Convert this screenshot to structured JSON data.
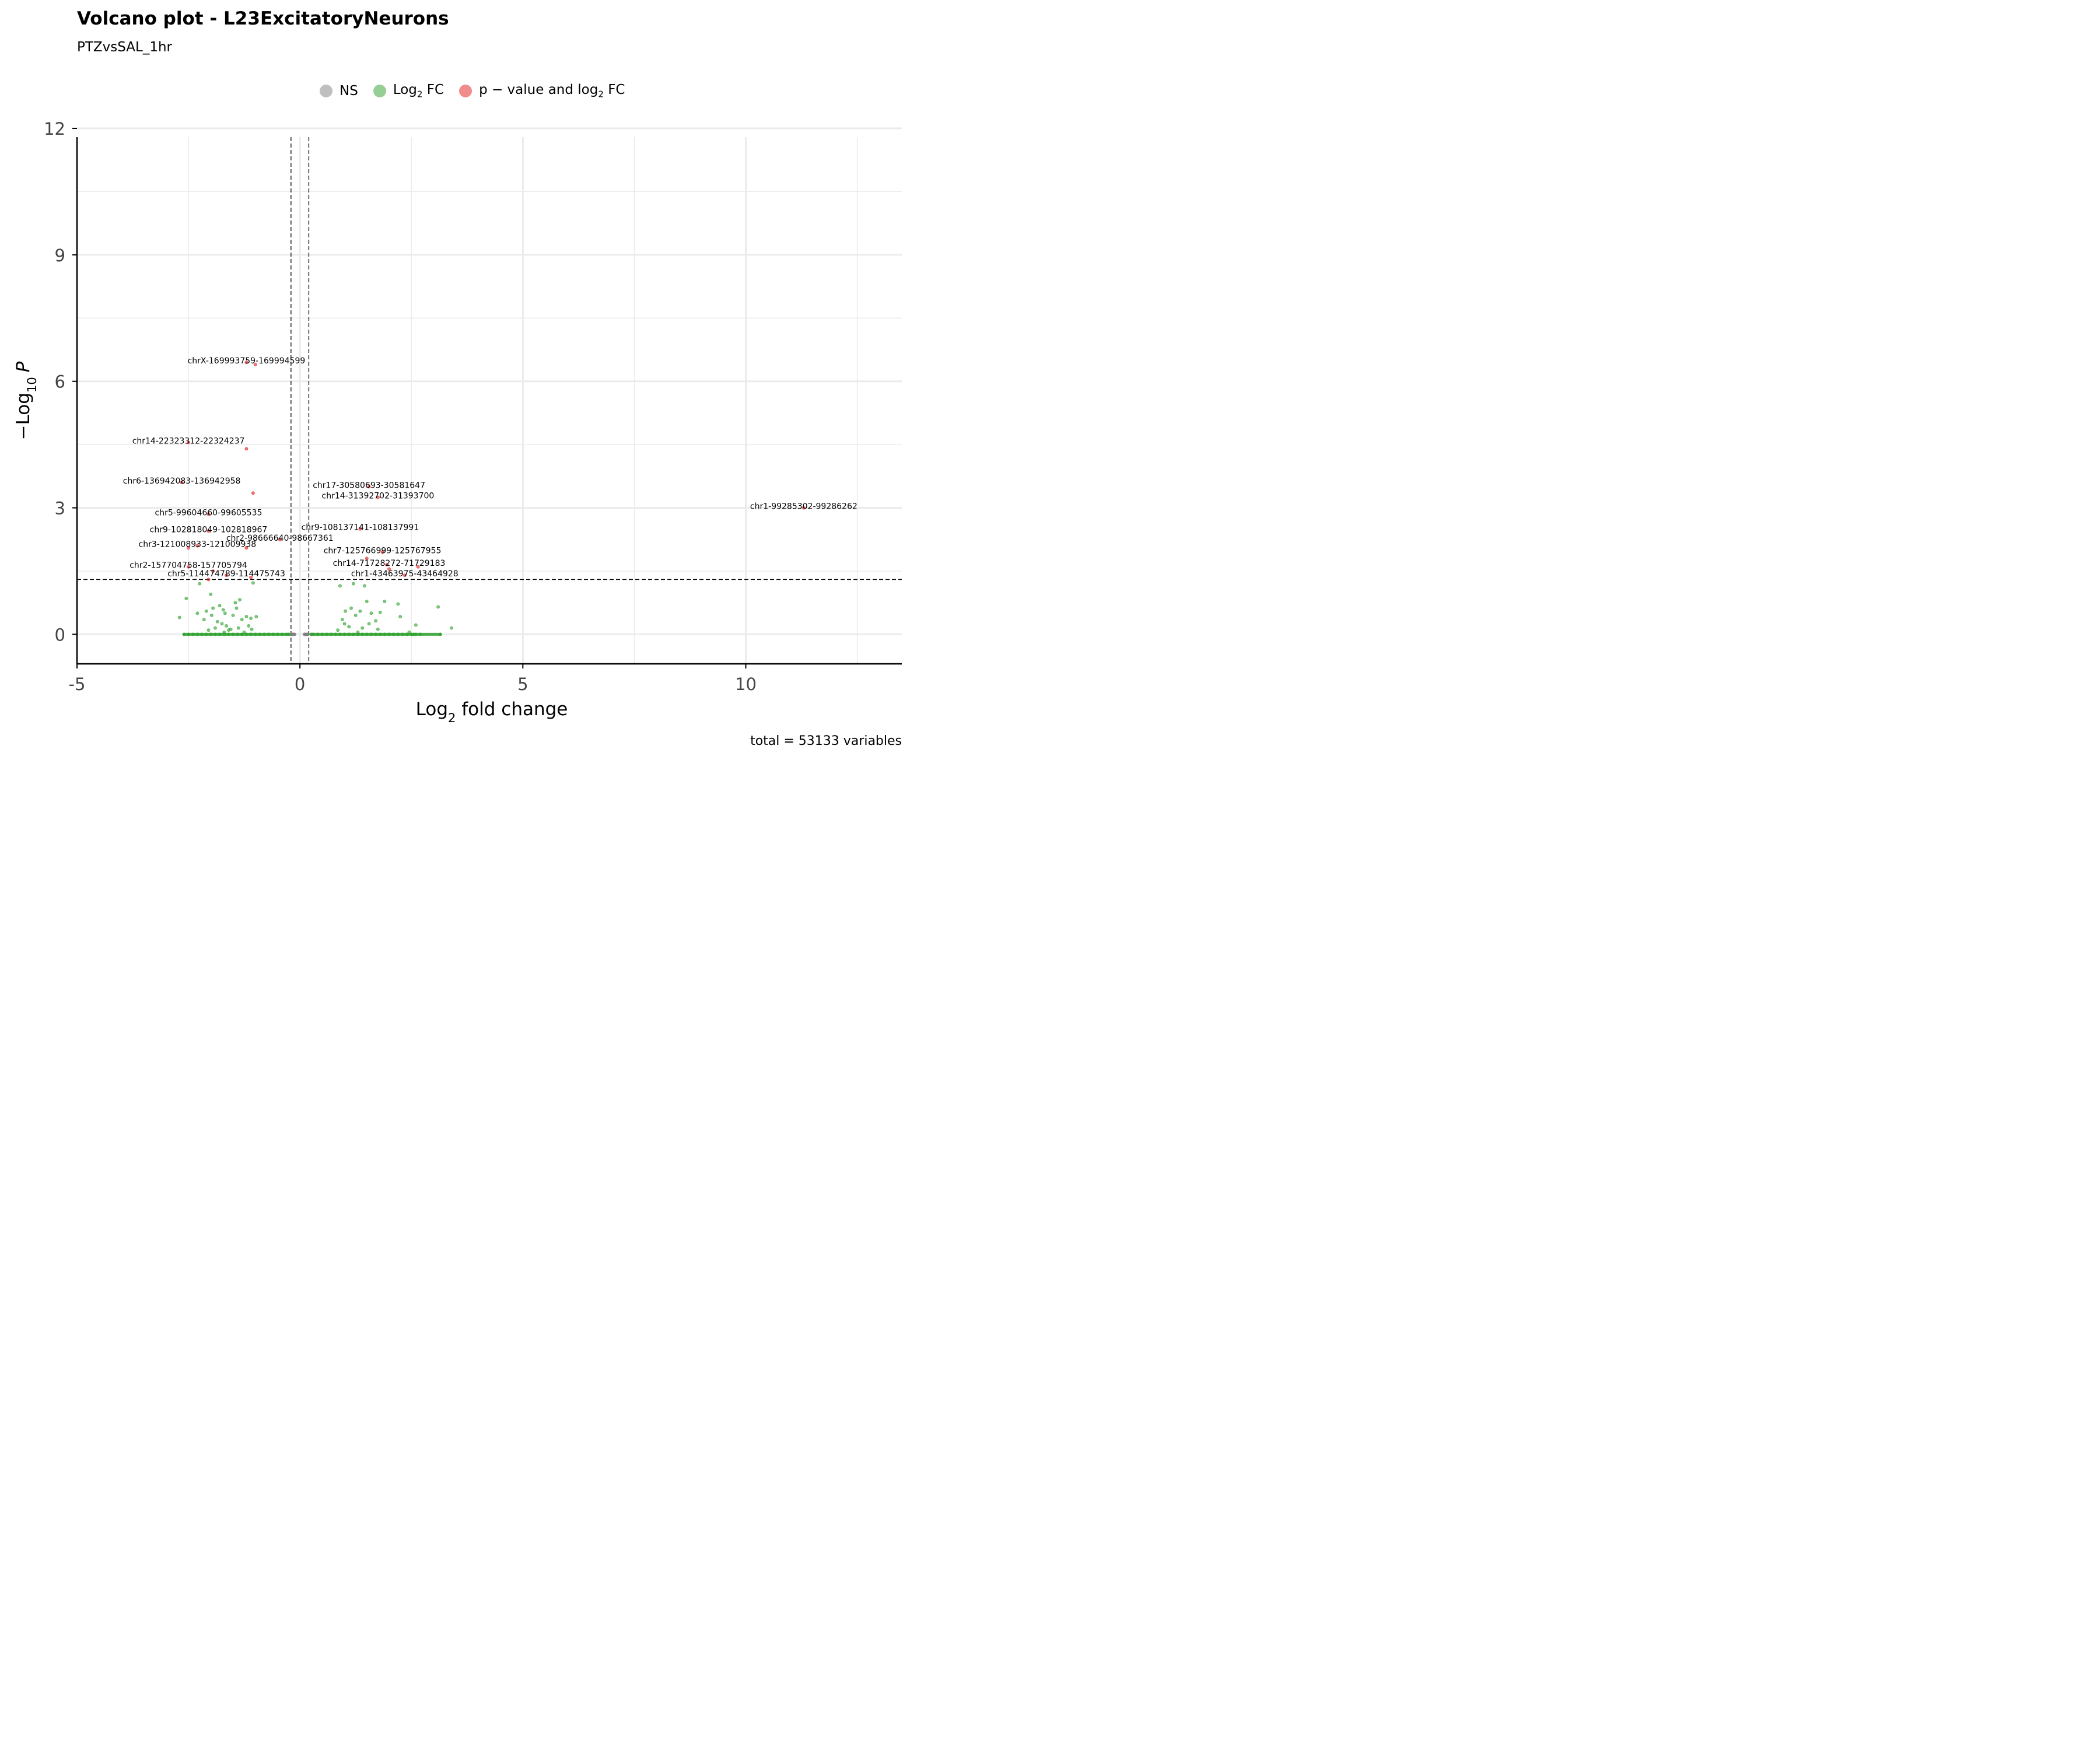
{
  "chart_data": {
    "type": "scatter",
    "title": "Volcano plot - L23ExcitatoryNeurons",
    "subtitle": "PTZvsSAL_1hr",
    "xlabel": "Log2 fold change",
    "ylabel": "-Log10 P",
    "xlim": [
      -5,
      13.5
    ],
    "ylim": [
      -0.7,
      12
    ],
    "x_ticks": [
      -5,
      0,
      5,
      10
    ],
    "y_ticks": [
      0,
      3,
      6,
      9,
      12
    ],
    "grid": true,
    "legend_position": "top",
    "caption": "total = 53133 variables",
    "cutoffs": {
      "log2fc": [
        -0.2,
        0.2
      ],
      "neg_log10_p": 1.3
    },
    "colors": {
      "NS": "#808080",
      "Log2 FC": "#2ca02c",
      "p-value and log2 FC": "#e41a1c",
      "grid": "#ebebeb",
      "axis": "#000000",
      "label": "#000000"
    },
    "series": [
      {
        "name": "NS",
        "x": [
          -0.2,
          -0.18,
          -0.16,
          -0.14,
          -0.12,
          0.1,
          0.12,
          0.14,
          0.16,
          0.18
        ],
        "y": [
          0,
          0,
          0,
          0,
          0,
          0,
          0,
          0,
          0,
          0
        ]
      },
      {
        "name": "Log2 FC",
        "x": [
          -2.5,
          -2.4,
          -2.3,
          -2.2,
          -2.1,
          -2.0,
          -1.9,
          -1.8,
          -1.7,
          -1.6,
          -1.5,
          -1.4,
          -1.3,
          -1.2,
          -1.1,
          -1.0,
          -0.9,
          -0.8,
          -0.7,
          -0.6,
          -0.5,
          -0.4,
          -0.3,
          -0.25,
          0.25,
          0.3,
          0.4,
          0.5,
          0.6,
          0.7,
          0.8,
          0.9,
          1.0,
          1.1,
          1.2,
          1.3,
          1.4,
          1.5,
          1.6,
          1.7,
          1.8,
          1.9,
          2.0,
          2.1,
          2.2,
          2.3,
          2.4,
          2.5,
          2.6,
          2.7,
          -2.7,
          -2.6,
          -2.55,
          -2.3,
          -2.25,
          -2.15,
          -2.1,
          -2.05,
          -2.0,
          -1.98,
          -1.95,
          -1.9,
          -1.85,
          -1.8,
          -1.75,
          -1.72,
          -1.7,
          -1.68,
          -1.65,
          -1.6,
          -1.55,
          -1.5,
          -1.45,
          -1.42,
          -1.38,
          -1.35,
          -1.3,
          -1.25,
          -1.2,
          -1.15,
          -1.1,
          -1.08,
          -1.05,
          -0.98,
          0.85,
          0.9,
          0.95,
          1.0,
          1.02,
          1.1,
          1.15,
          1.2,
          1.25,
          1.3,
          1.35,
          1.4,
          1.45,
          1.5,
          1.55,
          1.6,
          1.7,
          1.75,
          1.8,
          1.9,
          2.2,
          2.25,
          2.6,
          3.1,
          3.4,
          3.15,
          2.45,
          2.55
        ],
        "y": [
          0,
          0,
          0,
          0,
          0,
          0,
          0,
          0,
          0,
          0,
          0,
          0,
          0,
          0,
          0,
          0,
          0,
          0,
          0,
          0,
          0,
          0,
          0,
          0,
          0,
          0,
          0,
          0,
          0,
          0,
          0,
          0,
          0,
          0,
          0,
          0,
          0,
          0,
          0,
          0,
          0,
          0,
          0,
          0,
          0,
          0,
          0,
          0,
          0,
          0,
          0.4,
          0.0,
          0.85,
          0.5,
          1.2,
          0.35,
          0.55,
          0.1,
          0.95,
          0.45,
          0.62,
          0.15,
          0.3,
          0.68,
          0.25,
          0.58,
          0.05,
          0.5,
          0.2,
          0.1,
          0.12,
          0.45,
          0.75,
          0.62,
          0.15,
          0.82,
          0.35,
          0.05,
          0.42,
          0.2,
          0.38,
          0.12,
          1.22,
          0.42,
          0.1,
          1.15,
          0.35,
          0.25,
          0.55,
          0.18,
          0.62,
          1.2,
          0.45,
          0.05,
          0.55,
          0.15,
          1.15,
          0.78,
          0.25,
          0.5,
          0.32,
          0.12,
          0.52,
          0.78,
          0.72,
          0.42,
          0.22,
          0.65,
          0.15,
          0.0,
          0.05,
          0.0
        ]
      },
      {
        "name": "p-value and log2 FC",
        "x": [
          -1.2,
          -1.0,
          -2.5,
          -1.2,
          -2.65,
          -1.05,
          -2.05,
          -2.05,
          -2.3,
          -0.45,
          -2.5,
          -1.2,
          -2.5,
          -1.95,
          -1.65,
          -2.05,
          -1.1,
          11.3,
          1.55,
          1.75,
          1.35,
          1.85,
          1.5,
          2.65,
          2.0,
          2.35,
          1.95
        ],
        "y": [
          6.45,
          6.4,
          4.55,
          4.4,
          3.6,
          3.35,
          2.85,
          2.45,
          2.1,
          2.25,
          2.05,
          2.05,
          1.6,
          1.5,
          1.4,
          1.3,
          1.35,
          3.0,
          3.5,
          3.25,
          2.5,
          1.95,
          1.8,
          1.6,
          1.55,
          1.4,
          1.65
        ]
      }
    ],
    "annotations": [
      {
        "text": "chrX-169993759-169994599",
        "x": -1.2,
        "y": 6.45
      },
      {
        "text": "chr14-22323312-22324237",
        "x": -2.5,
        "y": 4.55
      },
      {
        "text": "chr6-136942083-136942958",
        "x": -2.65,
        "y": 3.6
      },
      {
        "text": "chr5-99604660-99605535",
        "x": -2.05,
        "y": 2.85
      },
      {
        "text": "chr9-102818049-102818967",
        "x": -2.05,
        "y": 2.45
      },
      {
        "text": "chr2-98666640-98667361",
        "x": -0.45,
        "y": 2.25
      },
      {
        "text": "chr3-121008933-121009938",
        "x": -2.3,
        "y": 2.1
      },
      {
        "text": "chr2-157704758-157705794",
        "x": -2.5,
        "y": 1.6
      },
      {
        "text": "chr5-114474789-114475743",
        "x": -1.65,
        "y": 1.4
      },
      {
        "text": "chr17-30580693-30581647",
        "x": 1.55,
        "y": 3.5
      },
      {
        "text": "chr14-31392702-31393700",
        "x": 1.75,
        "y": 3.25
      },
      {
        "text": "chr9-108137141-108137991",
        "x": 1.35,
        "y": 2.5
      },
      {
        "text": "chr7-125766999-125767955",
        "x": 1.85,
        "y": 1.95
      },
      {
        "text": "chr14-71728272-71729183",
        "x": 2.0,
        "y": 1.65
      },
      {
        "text": "chr1-43463975-43464928",
        "x": 2.35,
        "y": 1.4
      },
      {
        "text": "chr1-99285302-99286262",
        "x": 11.3,
        "y": 3.0
      }
    ]
  },
  "legend": {
    "ns": {
      "label": "NS",
      "color": "#808080"
    },
    "fc": {
      "label_main": "Log",
      "label_sub": "2",
      "label_tail": " FC",
      "color": "#2ca02c"
    },
    "pfc": {
      "label_main": "p − value and log",
      "label_sub": "2",
      "label_tail": " FC",
      "color": "#e41a1c"
    }
  },
  "axis_titles": {
    "x_main": "Log",
    "x_sub": "2",
    "x_tail": " fold change",
    "y_prefix": "−Log",
    "y_sub": "10",
    "y_tail": "P"
  }
}
